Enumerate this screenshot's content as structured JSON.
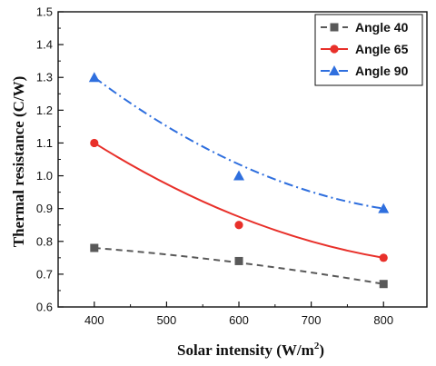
{
  "chart_data": {
    "type": "scatter",
    "title": "",
    "xlabel": "Solar intensity (W/m²)",
    "xlabel_main": "Solar intensity (W/m",
    "xlabel_sup": "2",
    "xlabel_end": ")",
    "ylabel": "Thermal resistance (C/W)",
    "xlim": [
      350,
      860
    ],
    "ylim": [
      0.6,
      1.5
    ],
    "x_ticks": [
      "400",
      "500",
      "600",
      "700",
      "800"
    ],
    "y_ticks": [
      "0.6",
      "0.7",
      "0.8",
      "0.9",
      "1.0",
      "1.1",
      "1.2",
      "1.3",
      "1.4",
      "1.5"
    ],
    "legend_position": "top-right",
    "grid": false,
    "series": [
      {
        "name": "Angle 40",
        "color": "#595959",
        "marker": "square",
        "line_style": "dashed",
        "x": [
          400,
          600,
          800
        ],
        "y": [
          0.78,
          0.74,
          0.67
        ],
        "fit_y": [
          0.78,
          0.735,
          0.67
        ]
      },
      {
        "name": "Angle 65",
        "color": "#e8302a",
        "marker": "circle",
        "line_style": "solid",
        "x": [
          400,
          600,
          800
        ],
        "y": [
          1.1,
          0.85,
          0.75
        ],
        "fit_y": [
          1.1,
          0.875,
          0.75
        ]
      },
      {
        "name": "Angle 90",
        "color": "#2f6fde",
        "marker": "triangle",
        "line_style": "dash-dot",
        "x": [
          400,
          600,
          800
        ],
        "y": [
          1.3,
          1.0,
          0.9
        ],
        "fit_y": [
          1.3,
          1.035,
          0.9
        ]
      }
    ]
  }
}
